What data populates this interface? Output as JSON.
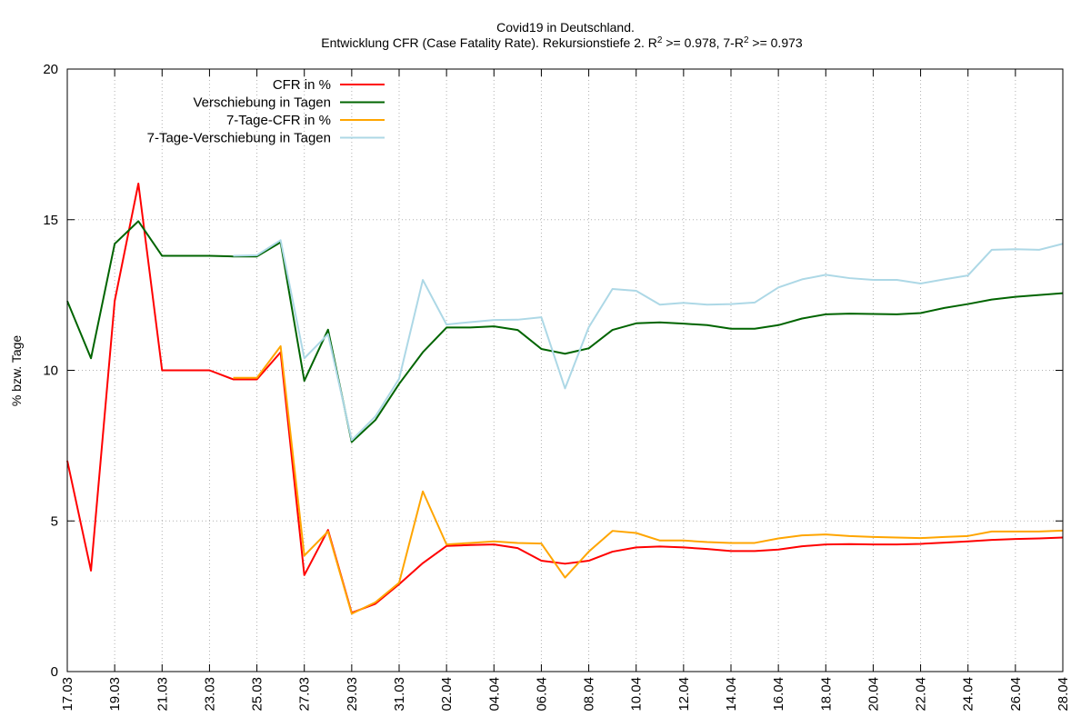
{
  "chart_data": {
    "type": "line",
    "title": "Covid19 in Deutschland.",
    "subtitle": {
      "prefix": "Entwicklung CFR (Case Fatality Rate). Rekursionstiefe 2. R",
      "sup1": "2",
      "middle": " >= 0.978, 7-R",
      "sup2": "2",
      "suffix": " >= 0.973"
    },
    "xlabel": "",
    "ylabel": "% bzw. Tage",
    "ylim": [
      0,
      20
    ],
    "yticks": [
      "0",
      "5",
      "10",
      "15",
      "20"
    ],
    "x": [
      "17.03",
      "18.03",
      "19.03",
      "20.03",
      "21.03",
      "22.03",
      "23.03",
      "24.03",
      "25.03",
      "26.03",
      "27.03",
      "28.03",
      "29.03",
      "30.03",
      "31.03",
      "01.04",
      "02.04",
      "03.04",
      "04.04",
      "05.04",
      "06.04",
      "07.04",
      "08.04",
      "09.04",
      "10.04",
      "11.04",
      "12.04",
      "13.04",
      "14.04",
      "15.04",
      "16.04",
      "17.04",
      "18.04",
      "19.04",
      "20.04",
      "21.04",
      "22.04",
      "23.04",
      "24.04",
      "25.04",
      "26.04",
      "27.04",
      "28.04"
    ],
    "xticks": [
      "17.03",
      "19.03",
      "21.03",
      "23.03",
      "25.03",
      "27.03",
      "29.03",
      "31.03",
      "02.04",
      "04.04",
      "06.04",
      "08.04",
      "10.04",
      "12.04",
      "14.04",
      "16.04",
      "18.04",
      "20.04",
      "22.04",
      "24.04",
      "26.04",
      "28.04"
    ],
    "grid": true,
    "legend_position": "top-left",
    "series": [
      {
        "name": "CFR in %",
        "color": "#ff0000",
        "values": [
          7.0,
          3.35,
          12.3,
          16.2,
          10.0,
          10.0,
          10.0,
          9.7,
          9.7,
          10.6,
          3.2,
          4.7,
          1.95,
          2.25,
          2.9,
          3.6,
          4.17,
          4.2,
          4.22,
          4.1,
          3.68,
          3.58,
          3.68,
          3.98,
          4.12,
          4.15,
          4.12,
          4.07,
          4.0,
          4.0,
          4.05,
          4.16,
          4.22,
          4.23,
          4.22,
          4.22,
          4.24,
          4.28,
          4.32,
          4.37,
          4.4,
          4.42,
          4.45
        ]
      },
      {
        "name": "Verschiebung in Tagen",
        "color": "#006400",
        "values": [
          12.3,
          10.4,
          14.2,
          14.95,
          13.8,
          13.8,
          13.8,
          13.78,
          13.78,
          14.25,
          9.65,
          11.35,
          7.62,
          8.35,
          9.55,
          10.6,
          11.42,
          11.42,
          11.46,
          11.34,
          10.71,
          10.55,
          10.73,
          11.34,
          11.56,
          11.59,
          11.55,
          11.5,
          11.38,
          11.38,
          11.5,
          11.72,
          11.86,
          11.88,
          11.87,
          11.86,
          11.9,
          12.07,
          12.2,
          12.35,
          12.44,
          12.5,
          12.56
        ]
      },
      {
        "name": "7-Tage-CFR in %",
        "color": "#ffa500",
        "values": [
          null,
          null,
          null,
          null,
          null,
          null,
          null,
          9.75,
          9.75,
          10.8,
          3.85,
          4.65,
          1.92,
          2.3,
          2.95,
          5.98,
          4.22,
          4.27,
          4.32,
          4.27,
          4.25,
          3.12,
          3.98,
          4.67,
          4.6,
          4.35,
          4.35,
          4.3,
          4.27,
          4.27,
          4.42,
          4.52,
          4.55,
          4.5,
          4.47,
          4.45,
          4.43,
          4.47,
          4.5,
          4.65,
          4.65,
          4.65,
          4.68
        ]
      },
      {
        "name": "7-Tage-Verschiebung in Tagen",
        "color": "#add8e6",
        "values": [
          null,
          null,
          null,
          null,
          null,
          null,
          null,
          13.8,
          13.82,
          14.32,
          10.4,
          11.2,
          7.68,
          8.47,
          9.72,
          13.0,
          11.52,
          11.6,
          11.67,
          11.68,
          11.76,
          9.4,
          11.43,
          12.7,
          12.64,
          12.18,
          12.24,
          12.18,
          12.2,
          12.25,
          12.75,
          13.02,
          13.17,
          13.06,
          13.0,
          13.0,
          12.88,
          13.02,
          13.15,
          14.0,
          14.02,
          14.0,
          14.2
        ]
      }
    ]
  }
}
